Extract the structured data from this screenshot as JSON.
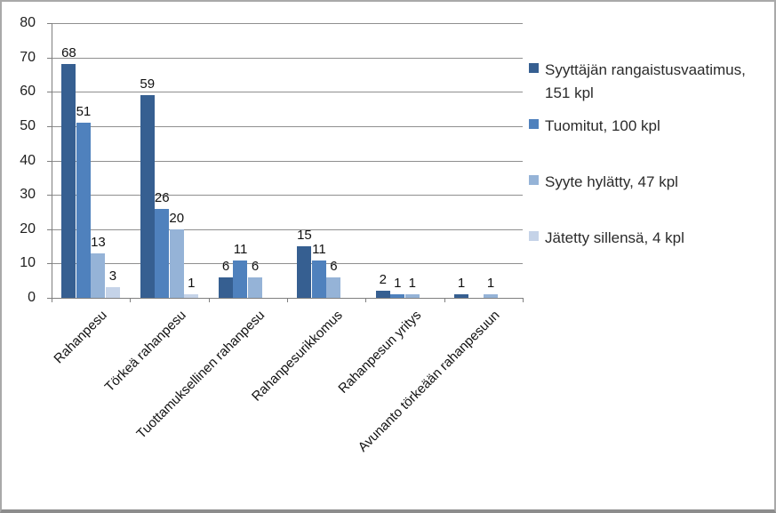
{
  "chart_data": {
    "type": "bar",
    "title": "",
    "xlabel": "",
    "ylabel": "",
    "categories": [
      "Rahanpesu",
      "Törkeä rahanpesu",
      "Tuottamuksellinen rahanpesu",
      "Rahanpesurikkomus",
      "Rahanpesun yritys",
      "Avunanto törkeään rahanpesuun"
    ],
    "series": [
      {
        "name": "Syyttäjän rangaistusvaatimus, 151 kpl",
        "values": [
          68,
          59,
          6,
          15,
          2,
          1
        ],
        "color": "#365F91"
      },
      {
        "name": "Tuomitut, 100 kpl",
        "values": [
          51,
          26,
          11,
          11,
          1,
          0
        ],
        "color": "#4F81BD"
      },
      {
        "name": "Syyte hylätty, 47 kpl",
        "values": [
          13,
          20,
          6,
          6,
          1,
          1
        ],
        "color": "#95B3D7"
      },
      {
        "name": "Jätetty sillensä, 4 kpl",
        "values": [
          3,
          1,
          0,
          0,
          0,
          0
        ],
        "color": "#C5D3E8"
      }
    ],
    "ylim": [
      0,
      80
    ],
    "ytick_step": 10,
    "ytick_labels": [
      "0",
      "10",
      "20",
      "30",
      "40",
      "50",
      "60",
      "70",
      "80"
    ],
    "grid": true,
    "data_labels": true,
    "zero_values_hidden": true,
    "legend_position": "right",
    "category_label_rotation_deg": -45
  },
  "colors": {
    "background": "#FFFFFF",
    "frame_border": "#A9A9A9",
    "gridline": "#8F8F8F",
    "axis": "#7F7F7F",
    "label_text": "#111111",
    "legend_text": "#2B2B2B"
  }
}
